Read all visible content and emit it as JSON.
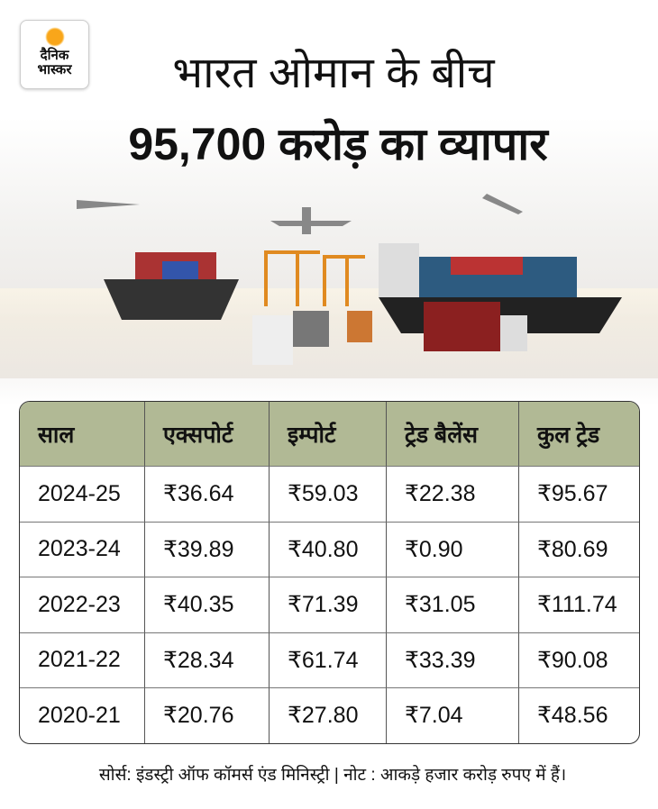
{
  "logo": {
    "line1": "दैनिक",
    "line2": "भास्कर"
  },
  "title": {
    "line1": "भारत ओमान के बीच",
    "line2": "95,700 करोड़ का व्यापार"
  },
  "table": {
    "headers": [
      "साल",
      "एक्सपोर्ट",
      "इम्पोर्ट",
      "ट्रेड बैलेंस",
      "कुल ट्रेड"
    ],
    "rows": [
      [
        "2024-25",
        "₹36.64",
        "₹59.03",
        "₹22.38",
        "₹95.67"
      ],
      [
        "2023-24",
        "₹39.89",
        "₹40.80",
        "₹0.90",
        "₹80.69"
      ],
      [
        "2022-23",
        "₹40.35",
        "₹71.39",
        "₹31.05",
        "₹111.74"
      ],
      [
        "2021-22",
        "₹28.34",
        "₹61.74",
        "₹33.39",
        "₹90.08"
      ],
      [
        "2020-21",
        "₹20.76",
        "₹27.80",
        "₹7.04",
        "₹48.56"
      ]
    ]
  },
  "footer": "सोर्स: इंडस्ट्री ऑफ कॉमर्स एंड मिनिस्ट्री | नोट : आकड़े हजार करोड़ रुपए में हैं।",
  "colors": {
    "header_bg": "#b1b995",
    "logo_sun": "#f9a61a"
  }
}
